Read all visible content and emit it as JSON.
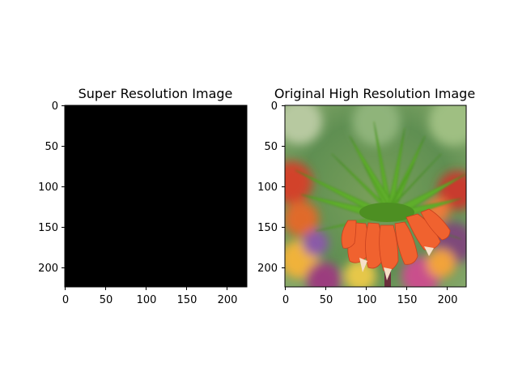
{
  "figure": {
    "panels": [
      {
        "title": "Super Resolution Image",
        "image": "solid-black-image",
        "x_ticks": [
          "0",
          "50",
          "100",
          "150",
          "200"
        ],
        "y_ticks": [
          "0",
          "50",
          "100",
          "150",
          "200"
        ],
        "x_range": [
          0,
          224
        ],
        "y_range": [
          0,
          224
        ]
      },
      {
        "title": "Original High Resolution Image",
        "image": "photo-of-orange-crown-imperial-flower",
        "x_ticks": [
          "0",
          "50",
          "100",
          "150",
          "200"
        ],
        "y_ticks": [
          "0",
          "50",
          "100",
          "150",
          "200"
        ],
        "x_range": [
          0,
          224
        ],
        "y_range": [
          0,
          224
        ]
      }
    ]
  },
  "colors": {
    "background": "#ffffff",
    "sr_image": "#000000",
    "petals": "#f0622f",
    "leaves": "#5fae2a",
    "bokeh_bg": "#5d8a4f"
  }
}
